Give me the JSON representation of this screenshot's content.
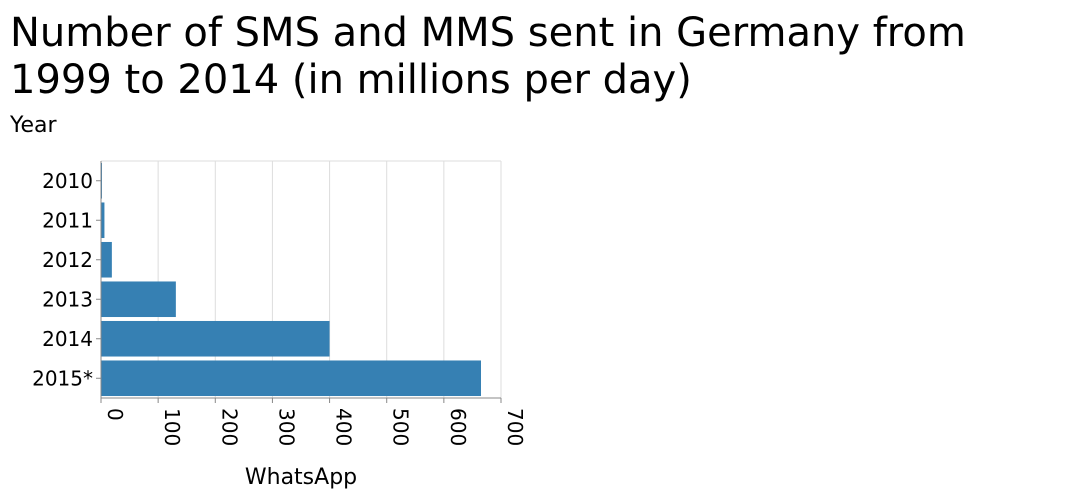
{
  "chart_data": {
    "type": "bar",
    "orientation": "horizontal",
    "title_lines": [
      "Number of SMS and MMS sent in Germany from",
      "1999 to 2014 (in millions per day)"
    ],
    "ylabel": "Year",
    "xlabel": "WhatsApp",
    "categories": [
      "2010",
      "2011",
      "2012",
      "2013",
      "2014",
      "2015*"
    ],
    "values": [
      1,
      6,
      19,
      131,
      400,
      665
    ],
    "xlim": [
      0,
      700
    ],
    "xticks": [
      "0",
      "100",
      "200",
      "300",
      "400",
      "500",
      "600",
      "700"
    ],
    "grid": true,
    "colors": {
      "bar": "#3680b3",
      "grid": "#dddddd",
      "axis": "#888888"
    }
  }
}
